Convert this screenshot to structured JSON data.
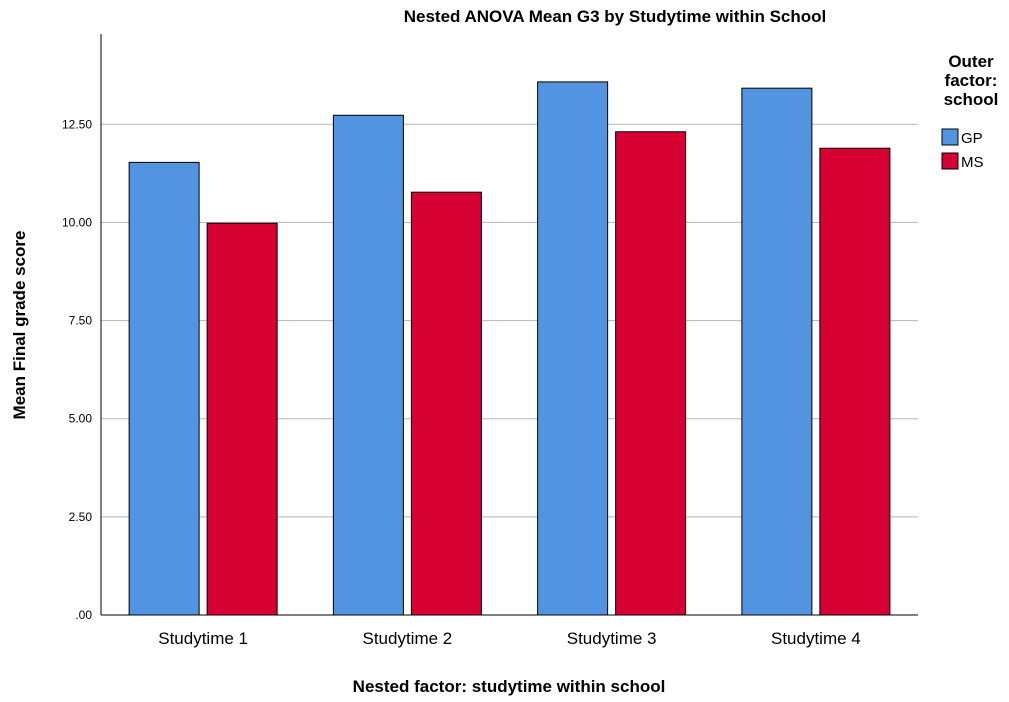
{
  "chart_data": {
    "type": "bar",
    "title": "Nested ANOVA Mean G3 by Studytime within School",
    "xlabel": "Nested factor: studytime within school",
    "ylabel": "Mean Final grade score",
    "categories": [
      "Studytime 1",
      "Studytime 2",
      "Studytime 3",
      "Studytime 4"
    ],
    "series": [
      {
        "name": "GP",
        "color": "#5294e2",
        "values": [
          11.53,
          12.73,
          13.58,
          13.42
        ]
      },
      {
        "name": "MS",
        "color": "#d70033",
        "values": [
          9.98,
          10.77,
          12.31,
          11.89
        ]
      }
    ],
    "ylim": [
      0,
      14.8
    ],
    "yticks": [
      0,
      2.5,
      5,
      7.5,
      10,
      12.5
    ],
    "ytick_labels": [
      ".00",
      "2.50",
      "5.00",
      "7.50",
      "10.00",
      "12.50"
    ],
    "grid": true,
    "legend": {
      "title": [
        "Outer",
        "factor:",
        "school"
      ],
      "placement": "right"
    }
  }
}
